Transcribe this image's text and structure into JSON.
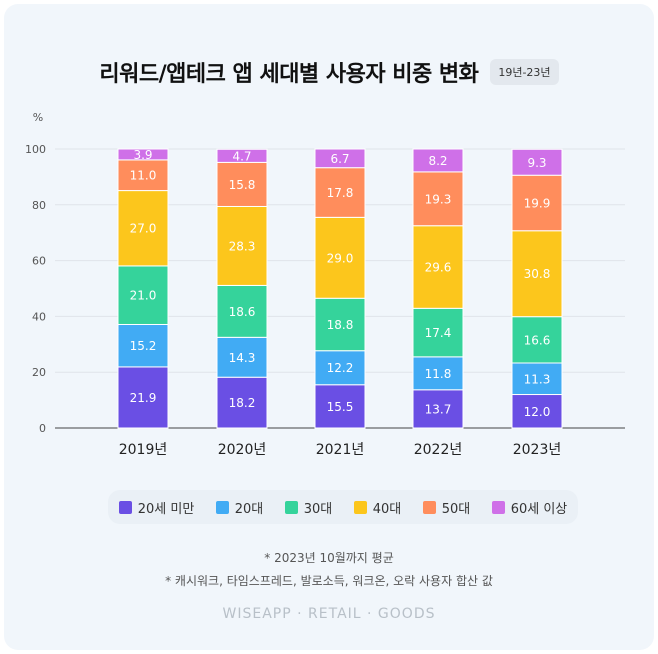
{
  "title": "리워드/앱테크 앱 세대별 사용자 비중 변화",
  "badge": "19년-23년",
  "notes": [
    "* 2023년 10월까지 평균",
    "* 캐시워크, 타임스프레드, 발로소득, 워크온, 오락 사용자 합산 값"
  ],
  "footer": "WISEAPP · RETAIL · GOODS",
  "chart_data": {
    "type": "bar",
    "stacked": true,
    "ylabel": "%",
    "ylim": [
      0,
      100
    ],
    "yticks": [
      0,
      20,
      40,
      60,
      80,
      100
    ],
    "grid": true,
    "legend_position": "bottom",
    "categories": [
      "2019년",
      "2020년",
      "2021년",
      "2022년",
      "2023년"
    ],
    "series": [
      {
        "name": "20세 미만",
        "color": "#6a4fe4",
        "values": [
          21.9,
          18.2,
          15.5,
          13.7,
          12.0
        ]
      },
      {
        "name": "20대",
        "color": "#41abf4",
        "values": [
          15.2,
          14.3,
          12.2,
          11.8,
          11.3
        ]
      },
      {
        "name": "30대",
        "color": "#35d39b",
        "values": [
          21.0,
          18.6,
          18.8,
          17.4,
          16.6
        ]
      },
      {
        "name": "40대",
        "color": "#fcc61c",
        "values": [
          27.0,
          28.3,
          29.0,
          29.6,
          30.8
        ]
      },
      {
        "name": "50대",
        "color": "#ff8d5c",
        "values": [
          11.0,
          15.8,
          17.8,
          19.3,
          19.9
        ]
      },
      {
        "name": "60세 이상",
        "color": "#cf70e8",
        "values": [
          3.9,
          4.7,
          6.7,
          8.2,
          9.3
        ]
      }
    ]
  }
}
